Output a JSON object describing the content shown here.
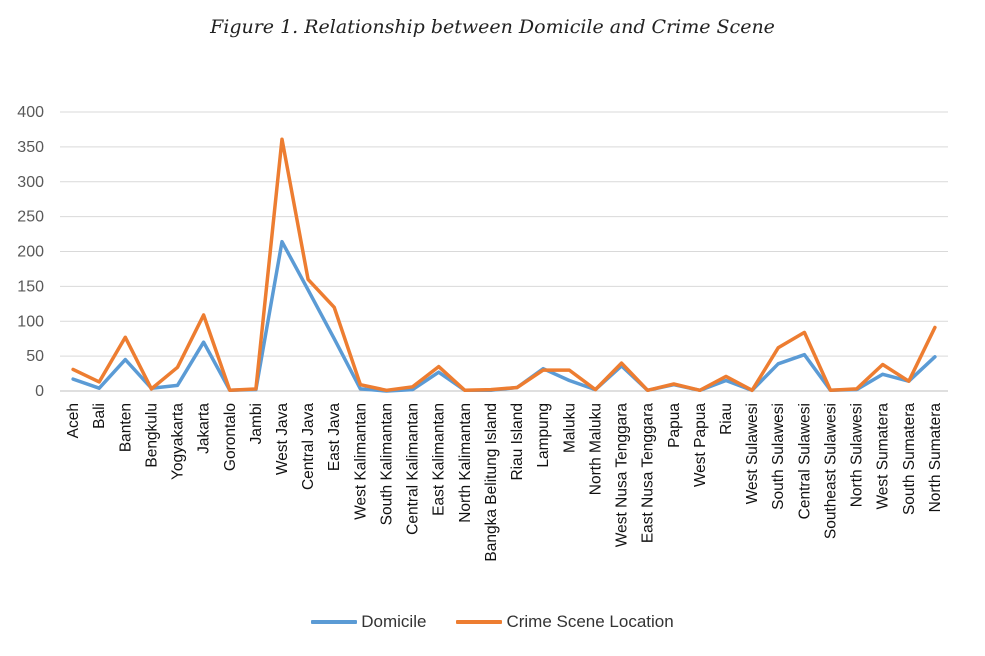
{
  "figure": {
    "title": "Figure 1. Relationship between Domicile and Crime Scene"
  },
  "chart_data": {
    "type": "line",
    "title": "Figure 1. Relationship between Domicile and Crime Scene",
    "xlabel": "",
    "ylabel": "",
    "ylim": [
      0,
      400
    ],
    "yticks": [
      0,
      50,
      100,
      150,
      200,
      250,
      300,
      350,
      400
    ],
    "grid": true,
    "legend": "bottom",
    "categories": [
      "Aceh",
      "Bali",
      "Banten",
      "Bengkulu",
      "Yogyakarta",
      "Jakarta",
      "Gorontalo",
      "Jambi",
      "West Java",
      "Central Java",
      "East Java",
      "West Kalimantan",
      "South Kalimantan",
      "Central Kalimantan",
      "East Kalimantan",
      "North Kalimantan",
      "Bangka Belitung Island",
      "Riau Island",
      "Lampung",
      "Maluku",
      "North Maluku",
      "West Nusa Tenggara",
      "East Nusa Tenggara",
      "Papua",
      "West Papua",
      "Riau",
      "West Sulawesi",
      "South Sulawesi",
      "Central Sulawesi",
      "Southeast Sulawesi",
      "North Sulawesi",
      "West Sumatera",
      "South Sumatera",
      "North Sumatera"
    ],
    "series": [
      {
        "name": "Domicile",
        "color": "#5B9BD5",
        "values": [
          17,
          4,
          45,
          4,
          8,
          70,
          1,
          2,
          214,
          145,
          75,
          3,
          0,
          2,
          27,
          1,
          1,
          5,
          32,
          15,
          2,
          36,
          1,
          9,
          1,
          15,
          1,
          39,
          52,
          1,
          2,
          24,
          14,
          49
        ]
      },
      {
        "name": "Crime Scene Location",
        "color": "#ED7D31",
        "values": [
          31,
          13,
          77,
          3,
          34,
          109,
          1,
          3,
          361,
          160,
          120,
          9,
          1,
          6,
          35,
          1,
          2,
          5,
          30,
          30,
          2,
          40,
          1,
          10,
          1,
          21,
          1,
          62,
          84,
          1,
          3,
          38,
          14,
          91
        ]
      }
    ]
  }
}
